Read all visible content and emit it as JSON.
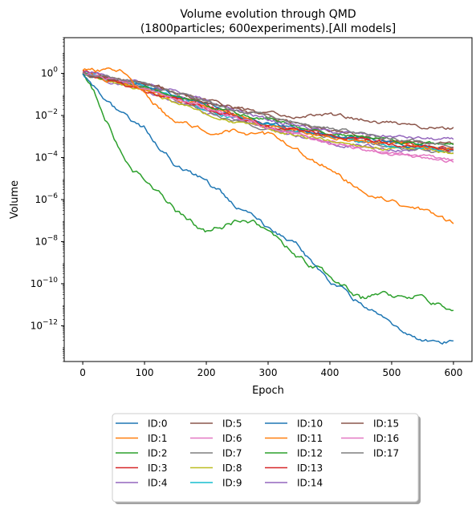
{
  "chart_data": {
    "type": "line",
    "title_line1": "Volume evolution through QMD",
    "title_line2": "(1800particles; 600experiments).[All models]",
    "xlabel": "Epoch",
    "ylabel": "Volume",
    "xlim": [
      -30,
      630
    ],
    "ylim_log10": [
      -13.7,
      1.7
    ],
    "yscale": "log",
    "xticks": [
      0,
      100,
      200,
      300,
      400,
      500,
      600
    ],
    "yticks": [
      {
        "exp": 0,
        "label": "10",
        "sup": "0"
      },
      {
        "exp": -2,
        "label": "10",
        "sup": "−2"
      },
      {
        "exp": -4,
        "label": "10",
        "sup": "−4"
      },
      {
        "exp": -6,
        "label": "10",
        "sup": "−6"
      },
      {
        "exp": -8,
        "label": "10",
        "sup": "−8"
      },
      {
        "exp": -10,
        "label": "10",
        "sup": "−10"
      },
      {
        "exp": -12,
        "label": "10",
        "sup": "−12"
      }
    ],
    "legend_position": "below plot, 4 columns",
    "series": [
      {
        "name": "ID:0",
        "color": "#1f77b4",
        "amp": 0.18,
        "x": [
          0,
          20,
          40,
          60,
          80,
          100,
          150,
          200,
          250,
          300,
          350,
          400,
          450,
          500,
          550,
          600
        ],
        "log10_y": [
          0.0,
          -0.6,
          -1.3,
          -2.0,
          -2.3,
          -2.6,
          -4.3,
          -5.1,
          -6.3,
          -7.3,
          -8.3,
          -10.0,
          -10.9,
          -11.9,
          -12.6,
          -12.8
        ]
      },
      {
        "name": "ID:1",
        "color": "#ff7f0e",
        "amp": 0.18,
        "x": [
          0,
          20,
          40,
          60,
          80,
          100,
          150,
          200,
          250,
          300,
          350,
          400,
          450,
          500,
          550,
          600
        ],
        "log10_y": [
          0.2,
          0.1,
          0.1,
          0.2,
          -0.4,
          -1.0,
          -2.3,
          -2.6,
          -2.6,
          -3.0,
          -3.8,
          -4.5,
          -5.6,
          -6.1,
          -6.6,
          -7.2
        ]
      },
      {
        "name": "ID:2",
        "color": "#2ca02c",
        "amp": 0.2,
        "x": [
          0,
          20,
          40,
          60,
          80,
          100,
          150,
          200,
          250,
          300,
          350,
          400,
          450,
          500,
          550,
          600
        ],
        "log10_y": [
          -0.1,
          -1.0,
          -2.3,
          -3.5,
          -4.4,
          -5.0,
          -6.5,
          -7.6,
          -7.0,
          -7.4,
          -8.8,
          -9.6,
          -10.7,
          -10.6,
          -10.6,
          -11.4
        ]
      },
      {
        "name": "ID:3",
        "color": "#d62728",
        "amp": 0.12,
        "x": [
          0,
          100,
          200,
          300,
          400,
          500,
          600
        ],
        "log10_y": [
          0.1,
          -0.6,
          -1.6,
          -2.4,
          -3.0,
          -3.3,
          -3.6
        ]
      },
      {
        "name": "ID:4",
        "color": "#9467bd",
        "amp": 0.12,
        "x": [
          0,
          100,
          200,
          300,
          400,
          500,
          600
        ],
        "log10_y": [
          0.0,
          -0.8,
          -1.8,
          -2.7,
          -3.3,
          -3.6,
          -3.7
        ]
      },
      {
        "name": "ID:5",
        "color": "#8c564b",
        "amp": 0.12,
        "x": [
          0,
          100,
          200,
          300,
          400,
          500,
          600
        ],
        "log10_y": [
          0.0,
          -0.5,
          -1.3,
          -2.1,
          -2.7,
          -3.2,
          -3.4
        ]
      },
      {
        "name": "ID:6",
        "color": "#e377c2",
        "amp": 0.12,
        "x": [
          0,
          100,
          200,
          300,
          400,
          500,
          600
        ],
        "log10_y": [
          0.1,
          -0.6,
          -1.6,
          -2.6,
          -3.3,
          -3.8,
          -4.2
        ]
      },
      {
        "name": "ID:7",
        "color": "#7f7f7f",
        "amp": 0.12,
        "x": [
          0,
          100,
          200,
          300,
          400,
          500,
          600
        ],
        "log10_y": [
          0.0,
          -0.7,
          -1.8,
          -2.6,
          -3.1,
          -3.5,
          -3.8
        ]
      },
      {
        "name": "ID:8",
        "color": "#bcbd22",
        "amp": 0.12,
        "x": [
          0,
          100,
          200,
          300,
          400,
          500,
          600
        ],
        "log10_y": [
          0.0,
          -0.8,
          -1.9,
          -2.7,
          -3.2,
          -3.6,
          -3.8
        ]
      },
      {
        "name": "ID:9",
        "color": "#17becf",
        "amp": 0.12,
        "x": [
          0,
          100,
          200,
          300,
          400,
          500,
          600
        ],
        "log10_y": [
          0.0,
          -0.6,
          -1.7,
          -2.5,
          -3.0,
          -3.4,
          -3.7
        ]
      },
      {
        "name": "ID:10",
        "color": "#1f77b4",
        "amp": 0.12,
        "x": [
          0,
          100,
          200,
          300,
          400,
          500,
          600
        ],
        "log10_y": [
          0.0,
          -0.6,
          -1.5,
          -2.4,
          -2.9,
          -3.3,
          -3.6
        ]
      },
      {
        "name": "ID:11",
        "color": "#ff7f0e",
        "amp": 0.12,
        "x": [
          0,
          100,
          200,
          300,
          400,
          500,
          600
        ],
        "log10_y": [
          0.0,
          -0.7,
          -1.6,
          -2.5,
          -3.0,
          -3.4,
          -3.6
        ]
      },
      {
        "name": "ID:12",
        "color": "#2ca02c",
        "amp": 0.12,
        "x": [
          0,
          100,
          200,
          300,
          400,
          500,
          600
        ],
        "log10_y": [
          0.0,
          -0.6,
          -1.5,
          -2.2,
          -2.8,
          -3.2,
          -3.5
        ]
      },
      {
        "name": "ID:13",
        "color": "#d62728",
        "amp": 0.12,
        "x": [
          0,
          100,
          200,
          300,
          400,
          500,
          600
        ],
        "log10_y": [
          0.0,
          -0.9,
          -1.7,
          -2.5,
          -3.0,
          -3.4,
          -3.6
        ]
      },
      {
        "name": "ID:14",
        "color": "#9467bd",
        "amp": 0.12,
        "x": [
          0,
          100,
          200,
          300,
          400,
          500,
          600
        ],
        "log10_y": [
          0.1,
          -0.4,
          -1.3,
          -2.2,
          -2.8,
          -3.0,
          -3.2
        ]
      },
      {
        "name": "ID:15",
        "color": "#8c564b",
        "amp": 0.14,
        "x": [
          0,
          100,
          200,
          300,
          400,
          500,
          600
        ],
        "log10_y": [
          0.0,
          -0.5,
          -1.4,
          -2.0,
          -2.0,
          -2.4,
          -2.6
        ]
      },
      {
        "name": "ID:16",
        "color": "#e377c2",
        "amp": 0.12,
        "x": [
          0,
          100,
          200,
          300,
          400,
          500,
          600
        ],
        "log10_y": [
          0.0,
          -0.7,
          -1.7,
          -2.6,
          -3.3,
          -3.9,
          -4.1
        ]
      },
      {
        "name": "ID:17",
        "color": "#7f7f7f",
        "amp": 0.12,
        "x": [
          0,
          100,
          200,
          300,
          400,
          500,
          600
        ],
        "log10_y": [
          0.0,
          -0.5,
          -1.4,
          -2.1,
          -2.6,
          -3.1,
          -3.5
        ]
      }
    ]
  }
}
